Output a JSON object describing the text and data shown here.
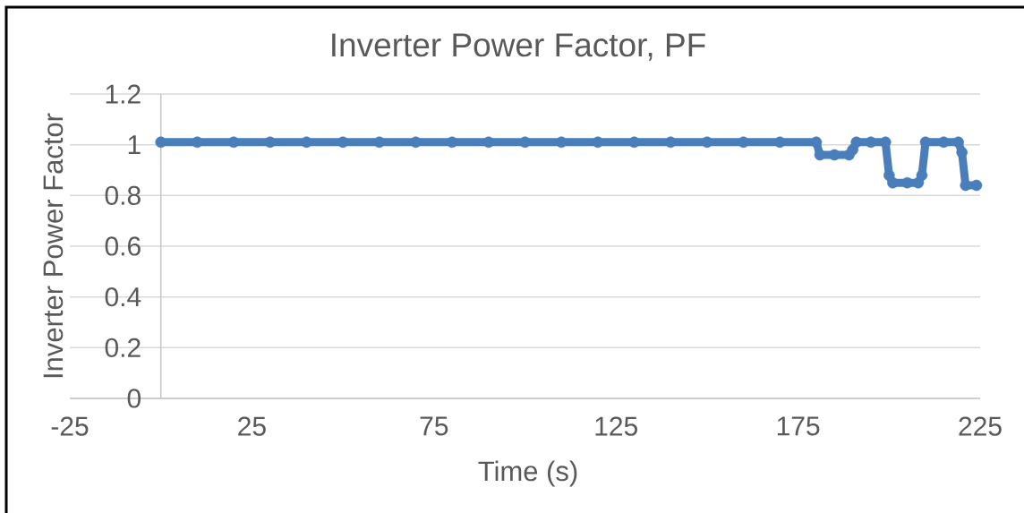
{
  "chart_data": {
    "type": "line",
    "title": "Inverter Power Factor, PF",
    "xlabel": "Time (s)",
    "ylabel": "Inverter Power Factor",
    "x": [
      0,
      10,
      20,
      30,
      40,
      50,
      60,
      70,
      80,
      90,
      100,
      110,
      120,
      130,
      140,
      150,
      160,
      170,
      180,
      181,
      185,
      189,
      190,
      191,
      195,
      199,
      200,
      201,
      205,
      208,
      209,
      210,
      215,
      219,
      220,
      221,
      224
    ],
    "series": [
      {
        "color": "#4a7ebb",
        "values": [
          1.01,
          1.01,
          1.01,
          1.01,
          1.01,
          1.01,
          1.01,
          1.01,
          1.01,
          1.01,
          1.01,
          1.01,
          1.01,
          1.01,
          1.01,
          1.01,
          1.01,
          1.01,
          1.01,
          0.96,
          0.96,
          0.96,
          0.98,
          1.01,
          1.01,
          1.01,
          0.88,
          0.85,
          0.85,
          0.85,
          0.88,
          1.01,
          1.01,
          1.01,
          0.97,
          0.84,
          0.84
        ]
      }
    ],
    "xlim": [
      -25,
      225
    ],
    "ylim": [
      0,
      1.2
    ],
    "xticks": [
      -25,
      25,
      75,
      125,
      175,
      225
    ],
    "yticks": [
      0,
      0.2,
      0.4,
      0.6,
      0.8,
      1,
      1.2
    ],
    "grid": "y",
    "marker": "circle",
    "line_style": "solid"
  }
}
